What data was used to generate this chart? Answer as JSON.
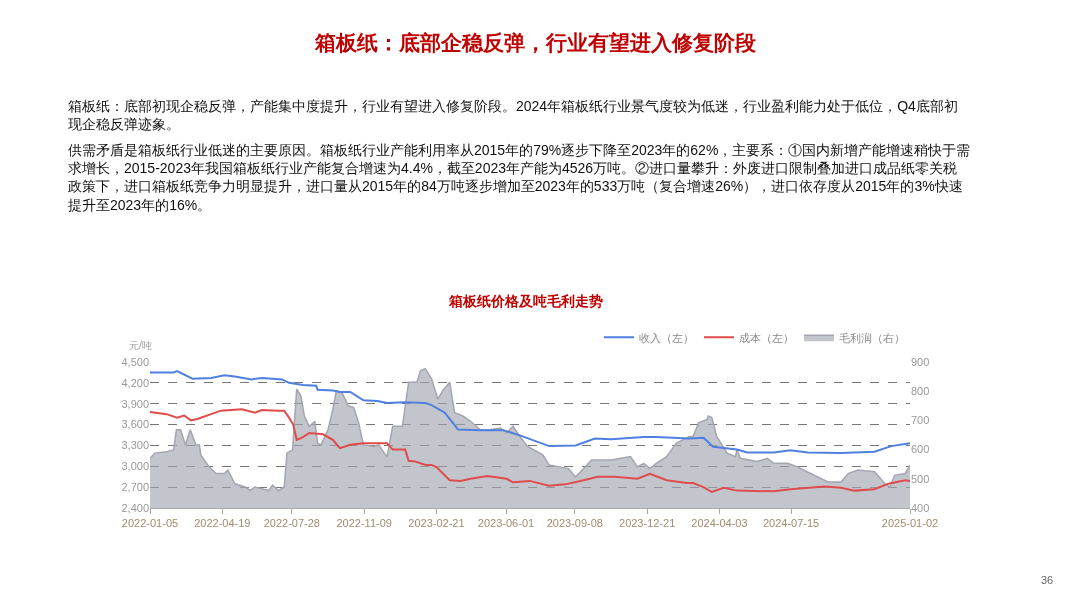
{
  "chart_data": {
    "type": "line",
    "title": "箱板纸价格及吨毛利走势",
    "ylabel": "元/吨",
    "annotations": [
      "箱板纸：底部企稳反弹，行业有望进入修复阶段",
      "箱板纸：底部初现企稳反弹，产能集中度提升，行业有望进入修复阶段。2024年箱板纸行业景气度较为低迷，行业盈利能力处于低位，Q4底部初现企稳反弹迹象。",
      "供需矛盾是箱板纸行业低迷的主要原因。箱板纸行业产能利用率从2015年的79%逐步下降至2023年的62%，主要系：①国内新增产能增速稍快于需求增长，2015-2023年我国箱板纸行业产能复合增速为4.4%，截至2023年产能为4526万吨。②进口量攀升：外废进口限制叠加进口成品纸零关税政策下，进口箱板纸竞争力明显提升，进口量从2015年的84万吨逐步增加至2023年的533万吨（复合增速26%），进口依存度从2015年的3%快速提升至2023年的16%。",
      "36"
    ],
    "xlim": [
      "2022-01-05",
      "2025-01-02"
    ],
    "xticks": [
      "2022-01-05",
      "2022-04-19",
      "2022-07-28",
      "2022-11-09",
      "2023-02-21",
      "2023-06-01",
      "2023-09-08",
      "2023-12-21",
      "2024-04-03",
      "2024-07-15",
      "2025-01-02"
    ],
    "ylim": [
      2400,
      4500
    ],
    "yticks": [
      {
        "value": 2400,
        "label": "2,400"
      },
      {
        "value": 2700,
        "label": "2,700"
      },
      {
        "value": 3000,
        "label": "3,000"
      },
      {
        "value": 3300,
        "label": "3,300"
      },
      {
        "value": 3600,
        "label": "3,600"
      },
      {
        "value": 3900,
        "label": "3,900"
      },
      {
        "value": 4200,
        "label": "4,200"
      },
      {
        "value": 4500,
        "label": "4,500"
      }
    ],
    "y2lim": [
      400,
      900
    ],
    "y2ticks": [
      400,
      500,
      600,
      700,
      800,
      900
    ],
    "grid": "y",
    "legend": "top right",
    "marker": "none",
    "line_style": "solid",
    "series": [
      {
        "name": "收入（左）",
        "color": "#4f7fdf",
        "x": [
          "2022-01-05",
          "2022-02-08",
          "2022-02-13",
          "2022-03-07",
          "2022-04-03",
          "2022-04-22",
          "2022-05-07",
          "2022-05-31",
          "2022-06-15",
          "2022-07-14",
          "2022-07-24",
          "2022-08-13",
          "2022-09-01",
          "2022-09-03",
          "2022-09-25",
          "2022-10-05",
          "2022-10-20",
          "2022-11-08",
          "2022-11-28",
          "2022-12-12",
          "2023-01-06",
          "2023-02-05",
          "2023-02-14",
          "2023-03-05",
          "2023-03-24",
          "2023-04-25",
          "2023-05-28",
          "2023-06-25",
          "2023-08-02",
          "2023-09-09",
          "2023-10-07",
          "2023-10-30",
          "2023-12-16",
          "2024-01-03",
          "2024-02-20",
          "2024-03-11",
          "2024-03-25",
          "2024-04-28",
          "2024-05-13",
          "2024-06-20",
          "2024-07-14",
          "2024-08-08",
          "2024-09-25",
          "2024-11-12",
          "2024-12-06",
          "2025-01-02"
        ],
        "values": [
          4350,
          4350,
          4370,
          4260,
          4270,
          4310,
          4290,
          4250,
          4270,
          4250,
          4200,
          4170,
          4160,
          4100,
          4090,
          4070,
          4070,
          3950,
          3940,
          3910,
          3920,
          3910,
          3880,
          3770,
          3530,
          3520,
          3520,
          3430,
          3290,
          3300,
          3400,
          3390,
          3420,
          3420,
          3400,
          3410,
          3280,
          3240,
          3200,
          3200,
          3230,
          3200,
          3190,
          3210,
          3290,
          3330
        ]
      },
      {
        "name": "成本（左）",
        "color": "#e04b4b",
        "x": [
          "2022-01-05",
          "2022-01-29",
          "2022-02-13",
          "2022-02-23",
          "2022-03-05",
          "2022-03-14",
          "2022-04-03",
          "2022-04-17",
          "2022-05-17",
          "2022-06-05",
          "2022-06-15",
          "2022-07-09",
          "2022-07-17",
          "2022-07-24",
          "2022-07-30",
          "2022-08-04",
          "2022-08-13",
          "2022-08-22",
          "2022-09-11",
          "2022-09-25",
          "2022-10-05",
          "2022-10-20",
          "2022-11-08",
          "2022-12-12",
          "2022-12-20",
          "2023-01-07",
          "2023-01-12",
          "2023-01-21",
          "2023-02-05",
          "2023-02-14",
          "2023-02-21",
          "2023-03-12",
          "2023-03-28",
          "2023-04-11",
          "2023-05-05",
          "2023-06-02",
          "2023-06-11",
          "2023-07-05",
          "2023-08-02",
          "2023-08-25",
          "2023-09-13",
          "2023-10-11",
          "2023-11-04",
          "2023-12-07",
          "2023-12-25",
          "2024-01-18",
          "2024-02-16",
          "2024-02-25",
          "2024-03-11",
          "2024-03-23",
          "2024-04-09",
          "2024-04-28",
          "2024-06-20",
          "2024-07-14",
          "2024-09-01",
          "2024-09-25",
          "2024-10-14",
          "2024-11-12",
          "2024-12-02",
          "2024-12-26",
          "2025-01-02"
        ],
        "values": [
          3780,
          3750,
          3700,
          3730,
          3660,
          3680,
          3750,
          3800,
          3820,
          3770,
          3810,
          3800,
          3800,
          3700,
          3600,
          3380,
          3420,
          3480,
          3460,
          3380,
          3260,
          3310,
          3330,
          3330,
          3240,
          3240,
          3080,
          3070,
          3020,
          3020,
          2990,
          2800,
          2790,
          2820,
          2860,
          2820,
          2770,
          2790,
          2720,
          2740,
          2780,
          2850,
          2850,
          2820,
          2890,
          2800,
          2760,
          2760,
          2700,
          2630,
          2690,
          2650,
          2640,
          2670,
          2710,
          2690,
          2650,
          2670,
          2750,
          2800,
          2790
        ]
      },
      {
        "name": "毛利润（右）",
        "type": "area",
        "axis": "y2",
        "color": "#a3a6b0",
        "x": [
          "2022-01-05",
          "2022-01-12",
          "2022-01-29",
          "2022-02-08",
          "2022-02-12",
          "2022-02-18",
          "2022-02-25",
          "2022-03-04",
          "2022-03-12",
          "2022-03-17",
          "2022-03-19",
          "2022-03-31",
          "2022-04-10",
          "2022-04-22",
          "2022-04-27",
          "2022-05-07",
          "2022-05-22",
          "2022-05-29",
          "2022-06-05",
          "2022-06-25",
          "2022-06-30",
          "2022-07-09",
          "2022-07-17",
          "2022-07-21",
          "2022-07-29",
          "2022-08-04",
          "2022-08-10",
          "2022-08-15",
          "2022-08-22",
          "2022-08-30",
          "2022-09-03",
          "2022-09-08",
          "2022-09-18",
          "2022-09-25",
          "2022-09-30",
          "2022-10-08",
          "2022-10-17",
          "2022-10-25",
          "2022-11-01",
          "2022-11-08",
          "2022-11-23",
          "2022-11-30",
          "2022-12-08",
          "2022-12-12",
          "2022-12-20",
          "2023-01-03",
          "2023-01-12",
          "2023-01-24",
          "2023-01-29",
          "2023-02-05",
          "2023-02-14",
          "2023-02-23",
          "2023-03-02",
          "2023-03-12",
          "2023-03-19",
          "2023-03-31",
          "2023-04-11",
          "2023-04-25",
          "2023-05-09",
          "2023-05-24",
          "2023-06-02",
          "2023-06-11",
          "2023-06-21",
          "2023-07-02",
          "2023-07-24",
          "2023-08-02",
          "2023-08-30",
          "2023-09-09",
          "2023-09-23",
          "2023-10-02",
          "2023-10-30",
          "2023-11-27",
          "2023-12-07",
          "2023-12-16",
          "2023-12-25",
          "2024-01-03",
          "2024-01-18",
          "2024-02-01",
          "2024-02-20",
          "2024-02-25",
          "2024-03-04",
          "2024-03-16",
          "2024-03-18",
          "2024-03-23",
          "2024-03-30",
          "2024-04-14",
          "2024-04-26",
          "2024-04-28",
          "2024-05-03",
          "2024-05-27",
          "2024-06-11",
          "2024-06-20",
          "2024-07-10",
          "2024-07-24",
          "2024-08-12",
          "2024-09-06",
          "2024-09-25",
          "2024-10-05",
          "2024-10-19",
          "2024-11-12",
          "2024-11-27",
          "2024-12-04",
          "2024-12-11",
          "2024-12-26",
          "2025-01-02"
        ],
        "values": [
          570,
          588,
          593,
          599,
          668,
          668,
          616,
          668,
          616,
          616,
          582,
          541,
          518,
          518,
          530,
          483,
          472,
          460,
          472,
          460,
          478,
          460,
          472,
          588,
          599,
          807,
          784,
          715,
          680,
          697,
          622,
          616,
          668,
          738,
          802,
          796,
          750,
          744,
          692,
          616,
          611,
          616,
          588,
          576,
          680,
          680,
          831,
          831,
          871,
          877,
          842,
          773,
          802,
          831,
          726,
          715,
          697,
          668,
          668,
          674,
          657,
          680,
          645,
          611,
          582,
          547,
          535,
          506,
          541,
          564,
          564,
          576,
          541,
          553,
          535,
          553,
          576,
          622,
          645,
          645,
          692,
          703,
          715,
          710,
          645,
          588,
          576,
          599,
          570,
          559,
          570,
          553,
          553,
          541,
          518,
          489,
          489,
          518,
          530,
          524,
          483,
          472,
          512,
          518,
          547
        ]
      }
    ]
  }
}
